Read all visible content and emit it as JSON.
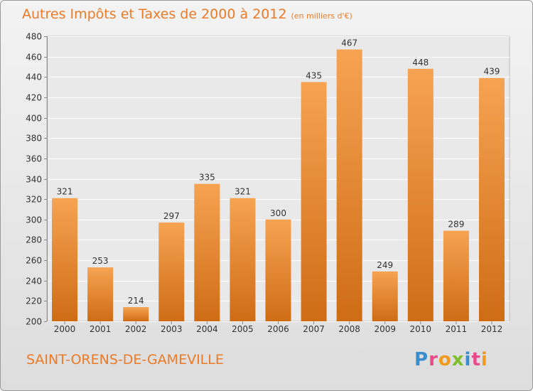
{
  "chart_data": {
    "type": "bar",
    "title": "Autres Impôts et Taxes de 2000 à 2012",
    "subtitle": "(en milliers d'€)",
    "categories": [
      "2000",
      "2001",
      "2002",
      "2003",
      "2004",
      "2005",
      "2006",
      "2007",
      "2008",
      "2009",
      "2010",
      "2011",
      "2012"
    ],
    "values": [
      321,
      253,
      214,
      297,
      335,
      321,
      300,
      435,
      467,
      249,
      448,
      289,
      439
    ],
    "ylim": [
      200,
      480
    ],
    "yticks": [
      200,
      220,
      240,
      260,
      280,
      300,
      320,
      340,
      360,
      380,
      400,
      420,
      440,
      460,
      480
    ],
    "grid": true,
    "legend": "none",
    "bar_color_top": "#f6a352",
    "bar_color_bottom": "#cf6c16"
  },
  "footer": {
    "commune": "SAINT-ORENS-DE-GAMEVILLE",
    "logo_letters": [
      {
        "ch": "P",
        "color": "#3a8ed0"
      },
      {
        "ch": "r",
        "color": "#e94b8a"
      },
      {
        "ch": "o",
        "color": "#f29a1e"
      },
      {
        "ch": "x",
        "color": "#7cbf2a"
      },
      {
        "ch": "i",
        "color": "#3a8ed0"
      },
      {
        "ch": "t",
        "color": "#e94b8a"
      },
      {
        "ch": "i",
        "color": "#f29a1e"
      }
    ]
  }
}
